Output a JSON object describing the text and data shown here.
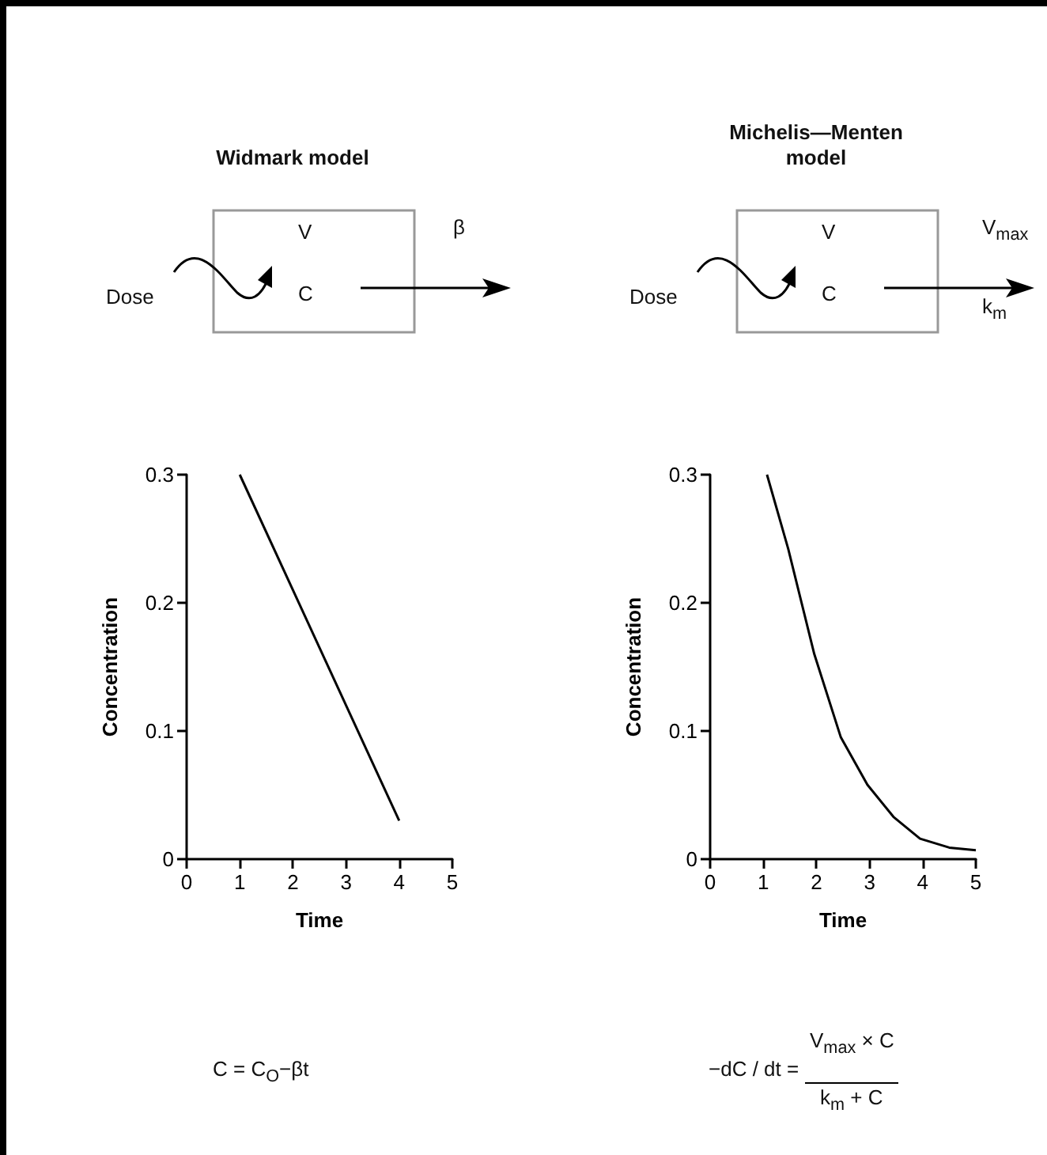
{
  "chart_data": [
    {
      "type": "line",
      "title": "Widmark model",
      "xlabel": "Time",
      "ylabel": "Concentration",
      "xlim": [
        0,
        5
      ],
      "xticks": [
        0,
        1,
        2,
        3,
        4,
        5
      ],
      "ylim": [
        0,
        0.3
      ],
      "yticks": [
        0,
        0.1,
        0.2,
        0.3
      ],
      "series": [
        {
          "x": [
            1,
            4
          ],
          "values": [
            0.3,
            0.03
          ],
          "color": "#000000"
        }
      ],
      "annotations": [
        "Dose",
        "V",
        "C",
        "β",
        "C = C$_{O}$−βt"
      ]
    },
    {
      "type": "line",
      "title": "Michelis—Menten model",
      "xlabel": "Time",
      "ylabel": "Concentration",
      "xlim": [
        0,
        5
      ],
      "xticks": [
        0,
        1,
        2,
        3,
        4,
        5
      ],
      "ylim": [
        0,
        0.3
      ],
      "yticks": [
        0,
        0.1,
        0.2,
        0.3
      ],
      "series": [
        {
          "x": [
            1.07,
            1.47,
            1.96,
            2.46,
            2.96,
            3.45,
            3.95,
            4.5,
            5
          ],
          "values": [
            0.3,
            0.242,
            0.16,
            0.095,
            0.058,
            0.033,
            0.016,
            0.009,
            0.007
          ],
          "color": "#000000"
        }
      ],
      "annotations": [
        "Dose",
        "V",
        "C",
        "V$_{max}$",
        "k$_{m}$",
        "−dC / dt =",
        "V$_{max}$ × C",
        "k$_{m}$ + C"
      ]
    }
  ]
}
